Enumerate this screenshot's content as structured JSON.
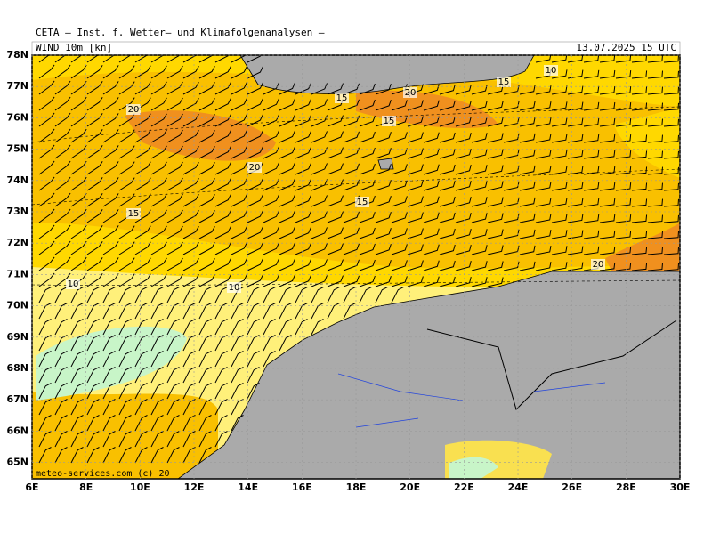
{
  "header": {
    "title": "CETA — Inst. f. Wetter— und Klimafolgenanalysen —",
    "subtitle": "WIND 10m [kn]",
    "datetime": "13.07.2025 15 UTC"
  },
  "map": {
    "lat_labels": [
      "78N",
      "77N",
      "76N",
      "75N",
      "74N",
      "73N",
      "72N",
      "71N",
      "70N",
      "69N",
      "68N",
      "67N",
      "66N",
      "65N"
    ],
    "lon_labels": [
      "6E",
      "8E",
      "10E",
      "12E",
      "14E",
      "16E",
      "18E",
      "20E",
      "22E",
      "24E",
      "26E",
      "28E",
      "30E"
    ],
    "contour_labels": [
      "10",
      "15",
      "20",
      "15",
      "15",
      "20",
      "20",
      "15",
      "15",
      "10",
      "10",
      "20"
    ]
  },
  "footer": "meteo-services.com (c) 20"
}
